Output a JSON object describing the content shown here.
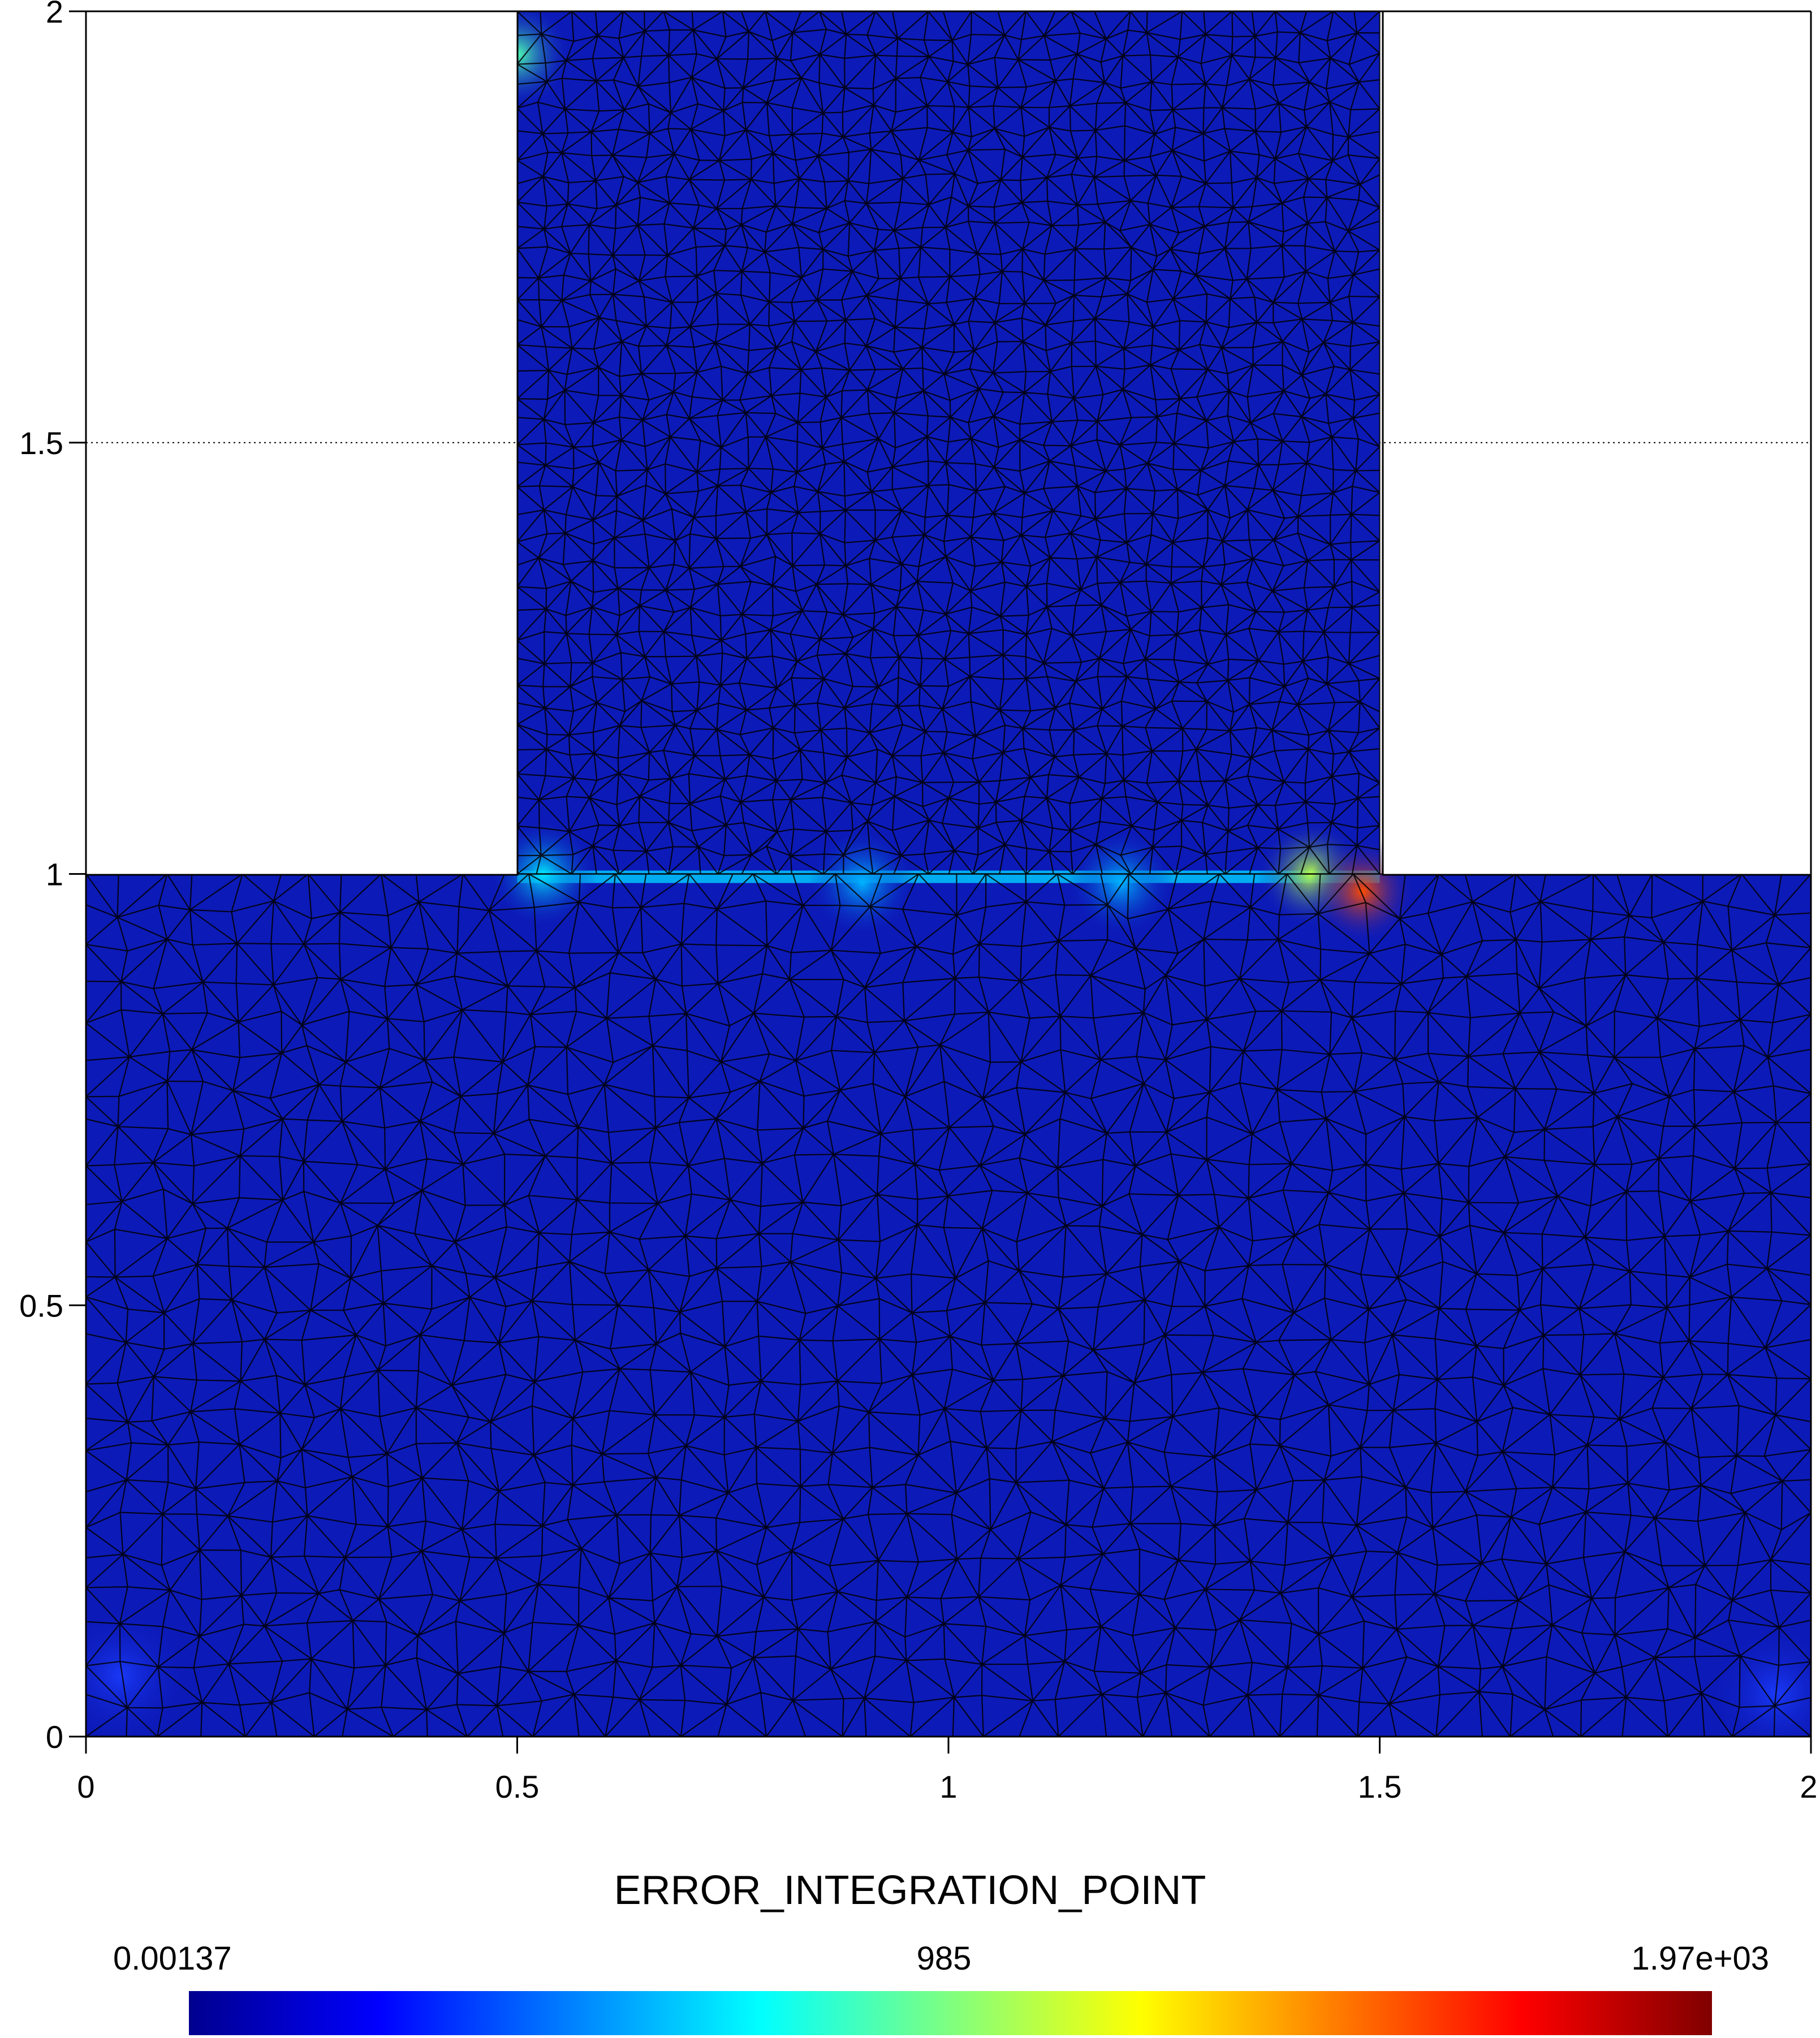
{
  "chart_data": {
    "type": "heatmap",
    "title": "",
    "xlabel": "",
    "ylabel": "",
    "xlim": [
      0,
      2
    ],
    "ylim": [
      0,
      2
    ],
    "x_ticks": [
      "0",
      "0.5",
      "1",
      "1.5",
      "2"
    ],
    "y_ticks": [
      "0",
      "0.5",
      "1",
      "1.5",
      "2"
    ],
    "domain_regions": [
      {
        "name": "lower block",
        "x": [
          0,
          2
        ],
        "y": [
          0,
          1
        ]
      },
      {
        "name": "upper block",
        "x": [
          0.5,
          1.5
        ],
        "y": [
          1,
          2
        ]
      }
    ],
    "field": "ERROR_INTEGRATION_POINT",
    "colorbar": {
      "label": "ERROR_INTEGRATION_POINT",
      "min_label": "0.00137",
      "mid_label": "985",
      "max_label": "1.97e+03",
      "min": 0.00137,
      "max": 1970,
      "colormap": "jet",
      "colors": [
        "#00008f",
        "#0000ff",
        "#00ffff",
        "#ffff00",
        "#ff0000",
        "#800000"
      ]
    },
    "hotspots": [
      {
        "x": 0.5,
        "y": 1.95,
        "value_fraction": 0.45
      },
      {
        "x": 0.53,
        "y": 1.0,
        "value_fraction": 0.35
      },
      {
        "x": 0.9,
        "y": 0.99,
        "value_fraction": 0.3
      },
      {
        "x": 1.2,
        "y": 0.99,
        "value_fraction": 0.3
      },
      {
        "x": 1.42,
        "y": 1.0,
        "value_fraction": 0.55
      },
      {
        "x": 1.48,
        "y": 0.98,
        "value_fraction": 0.8
      }
    ],
    "grid": "dotted at 0.5 intervals",
    "mesh": "triangular, shown"
  }
}
